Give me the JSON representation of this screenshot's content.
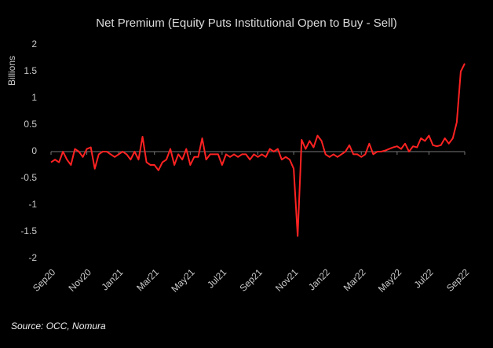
{
  "chart_data": {
    "type": "line",
    "title": "Net Premium (Equity Puts Institutional Open to Buy - Sell)",
    "y_label": "Billions",
    "source": "Source: OCC, Nomura",
    "categories": [
      "Sep20",
      null,
      null,
      null,
      null,
      null,
      null,
      null,
      null,
      "Nov20",
      null,
      null,
      null,
      null,
      null,
      null,
      null,
      "Jan21",
      null,
      null,
      null,
      null,
      null,
      null,
      null,
      null,
      "Mar21",
      null,
      null,
      null,
      null,
      null,
      null,
      null,
      null,
      "May21",
      null,
      null,
      null,
      null,
      null,
      null,
      null,
      "Jul21",
      null,
      null,
      null,
      null,
      null,
      null,
      null,
      null,
      "Sep21",
      null,
      null,
      null,
      null,
      null,
      null,
      null,
      null,
      "Nov21",
      null,
      null,
      null,
      null,
      null,
      null,
      null,
      "Jan22",
      null,
      null,
      null,
      null,
      null,
      null,
      null,
      null,
      "Mar22",
      null,
      null,
      null,
      null,
      null,
      null,
      null,
      null,
      "May22",
      null,
      null,
      null,
      null,
      null,
      null,
      null,
      "Jul22",
      null,
      null,
      null,
      null,
      null,
      null,
      null,
      null,
      "Sep22"
    ],
    "series": [
      {
        "name": "Net Premium",
        "color": "#ff2222",
        "values": [
          -0.2,
          -0.15,
          -0.2,
          0.0,
          -0.15,
          -0.25,
          0.05,
          0.0,
          -0.1,
          0.05,
          0.08,
          -0.32,
          -0.05,
          0.0,
          0.0,
          -0.05,
          -0.1,
          -0.05,
          0.0,
          -0.05,
          -0.15,
          0.0,
          -0.15,
          0.28,
          -0.2,
          -0.25,
          -0.25,
          -0.35,
          -0.2,
          -0.15,
          0.05,
          -0.25,
          -0.05,
          -0.15,
          0.05,
          -0.25,
          -0.1,
          -0.1,
          0.25,
          -0.15,
          -0.05,
          -0.05,
          -0.05,
          -0.25,
          -0.05,
          -0.1,
          -0.05,
          -0.1,
          -0.05,
          -0.05,
          -0.15,
          -0.05,
          -0.1,
          -0.05,
          -0.1,
          0.05,
          0.0,
          0.05,
          -0.15,
          -0.1,
          -0.15,
          -0.32,
          -1.58,
          0.22,
          0.05,
          0.2,
          0.08,
          0.3,
          0.2,
          -0.05,
          -0.1,
          -0.05,
          -0.1,
          -0.05,
          0.0,
          0.12,
          -0.05,
          -0.05,
          -0.1,
          -0.05,
          0.15,
          -0.05,
          0.0,
          0.0,
          0.02,
          0.05,
          0.08,
          0.1,
          0.05,
          0.15,
          0.0,
          0.1,
          0.08,
          0.25,
          0.2,
          0.3,
          0.12,
          0.1,
          0.12,
          0.25,
          0.15,
          0.25,
          0.55,
          1.5,
          1.65
        ]
      }
    ],
    "ylim": [
      -2,
      2
    ],
    "yticks": [
      -2,
      -1.5,
      -1,
      -0.5,
      0,
      0.5,
      1,
      1.5,
      2
    ],
    "grid": false
  }
}
